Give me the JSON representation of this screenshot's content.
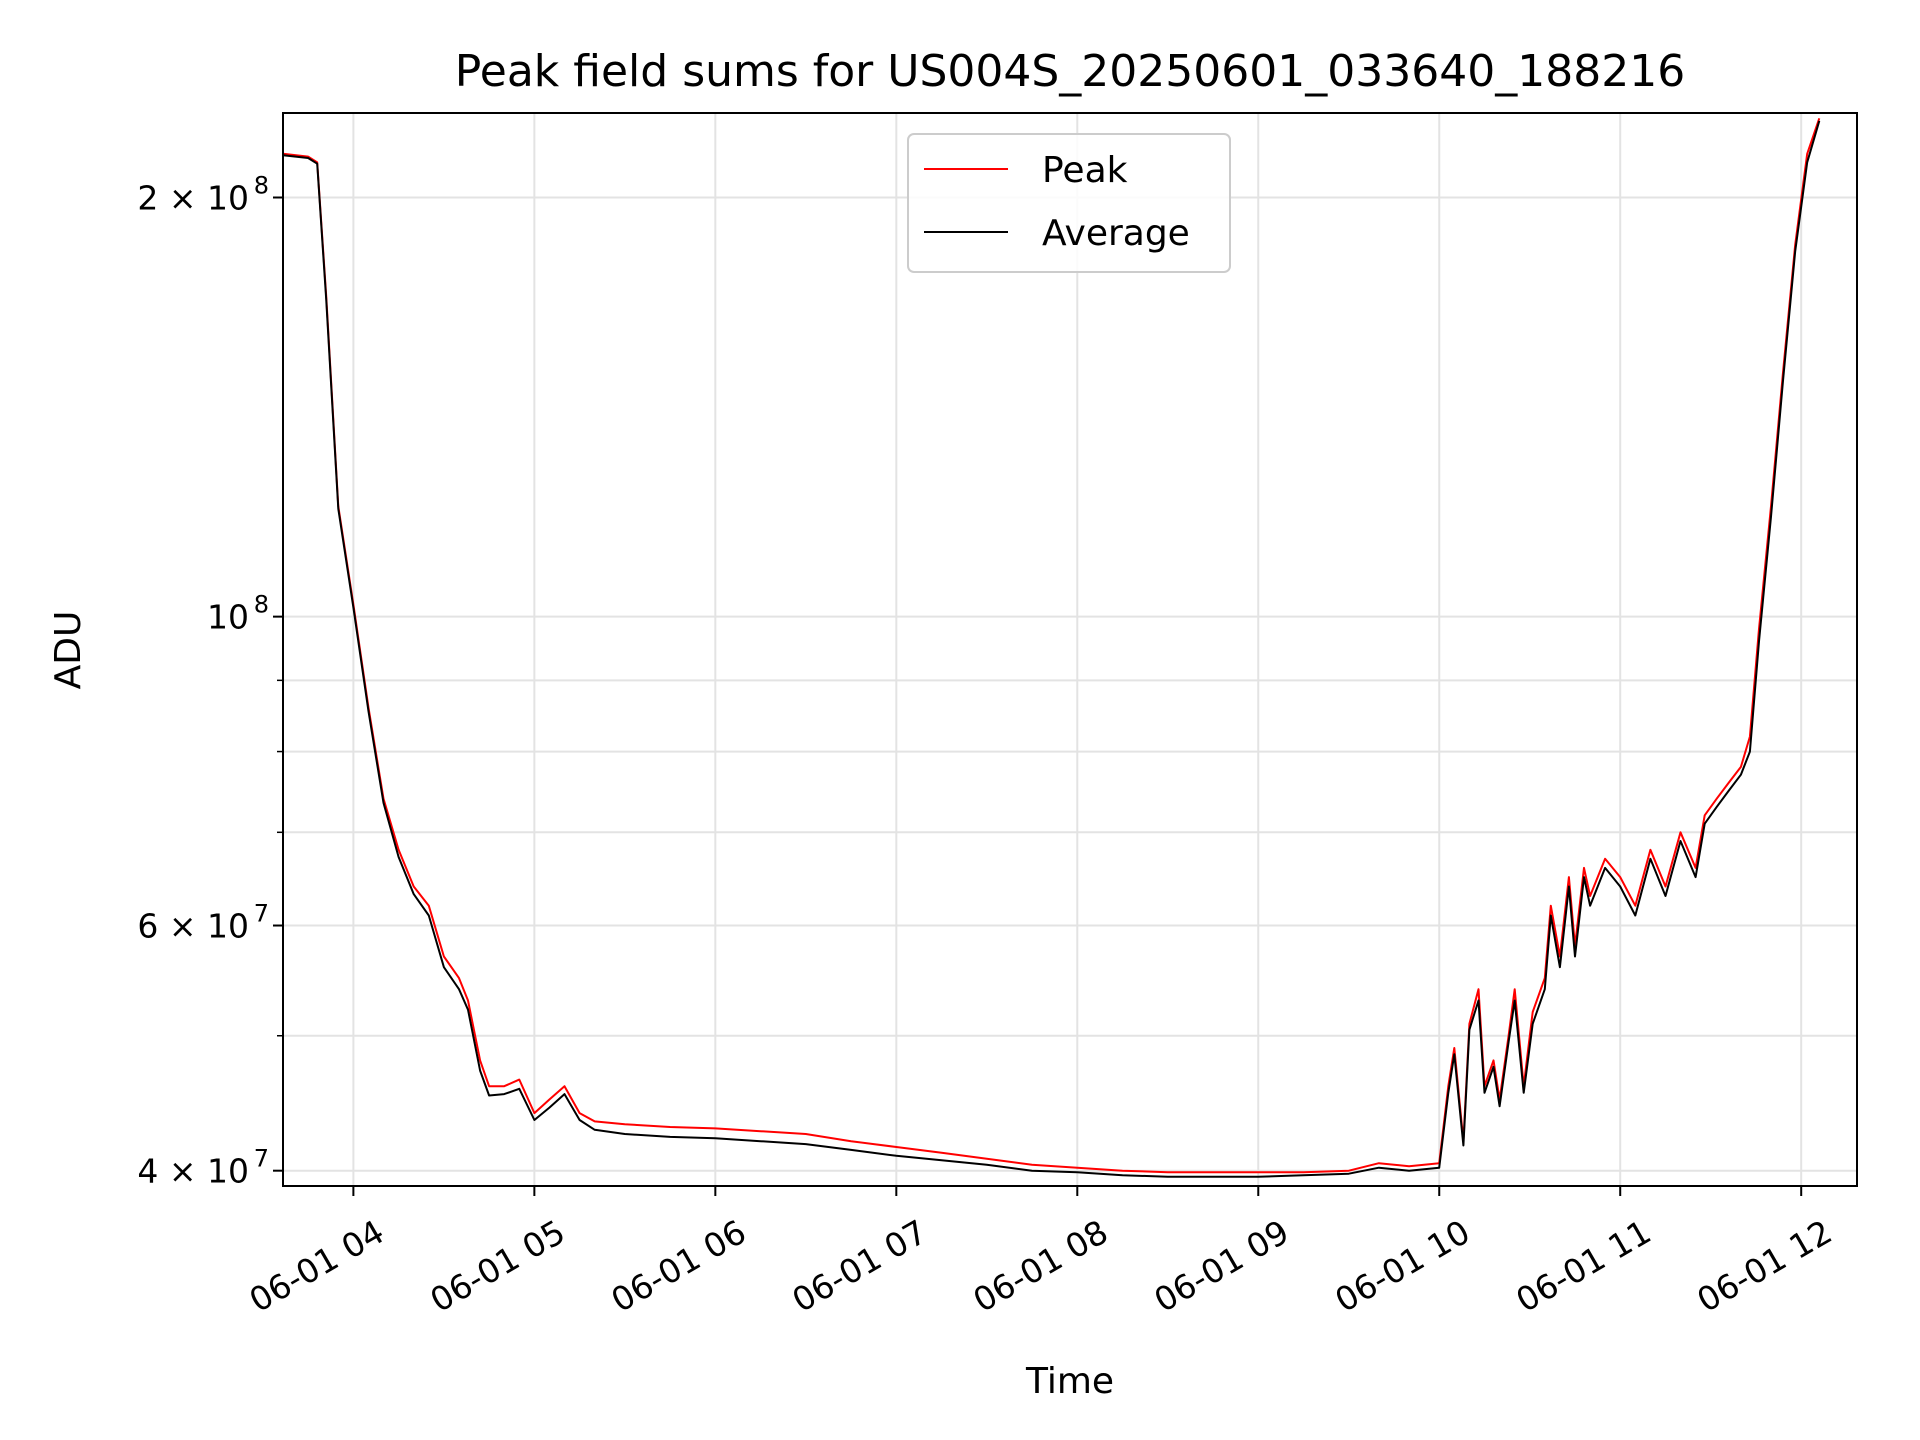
{
  "chart_data": {
    "type": "line",
    "title": "Peak field sums for US004S_20250601_033640_188216",
    "xlabel": "Time",
    "ylabel": "ADU",
    "y_scale": "log",
    "ylim": [
      39000000,
      230000000
    ],
    "xlim": [
      "2025-06-01T03:36:40",
      "2025-06-01T12:18:30"
    ],
    "grid": true,
    "legend_position": "top-center",
    "x_ticks": [
      {
        "t": "2025-06-01T04:00",
        "label": "06-01 04"
      },
      {
        "t": "2025-06-01T05:00",
        "label": "06-01 05"
      },
      {
        "t": "2025-06-01T06:00",
        "label": "06-01 06"
      },
      {
        "t": "2025-06-01T07:00",
        "label": "06-01 07"
      },
      {
        "t": "2025-06-01T08:00",
        "label": "06-01 08"
      },
      {
        "t": "2025-06-01T09:00",
        "label": "06-01 09"
      },
      {
        "t": "2025-06-01T10:00",
        "label": "06-01 10"
      },
      {
        "t": "2025-06-01T11:00",
        "label": "06-01 11"
      },
      {
        "t": "2025-06-01T12:00",
        "label": "06-01 12"
      }
    ],
    "y_ticks": [
      {
        "value": 40000000,
        "base": "4 × 10",
        "exp": "7"
      },
      {
        "value": 60000000,
        "base": "6 × 10",
        "exp": "7"
      },
      {
        "value": 100000000,
        "base": "10",
        "exp": "8"
      },
      {
        "value": 200000000,
        "base": "2 × 10",
        "exp": "8"
      }
    ],
    "y_minor_ticks": [
      50000000,
      70000000,
      80000000,
      90000000
    ],
    "series": [
      {
        "name": "Peak",
        "color": "#ff0000",
        "points": [
          [
            "2025-06-01T03:36:40",
            215000000
          ],
          [
            "2025-06-01T03:45:00",
            214000000
          ],
          [
            "2025-06-01T03:48:00",
            212000000
          ],
          [
            "2025-06-01T03:51:00",
            170000000
          ],
          [
            "2025-06-01T03:55:00",
            120000000
          ],
          [
            "2025-06-01T04:00:00",
            102000000
          ],
          [
            "2025-06-01T04:05:00",
            86000000
          ],
          [
            "2025-06-01T04:10:00",
            74000000
          ],
          [
            "2025-06-01T04:15:00",
            68000000
          ],
          [
            "2025-06-01T04:20:00",
            64000000
          ],
          [
            "2025-06-01T04:25:00",
            62000000
          ],
          [
            "2025-06-01T04:30:00",
            57000000
          ],
          [
            "2025-06-01T04:35:00",
            55000000
          ],
          [
            "2025-06-01T04:38:00",
            53000000
          ],
          [
            "2025-06-01T04:42:00",
            48000000
          ],
          [
            "2025-06-01T04:45:00",
            46000000
          ],
          [
            "2025-06-01T04:50:00",
            46000000
          ],
          [
            "2025-06-01T04:55:00",
            46500000
          ],
          [
            "2025-06-01T05:00:00",
            44000000
          ],
          [
            "2025-06-01T05:05:00",
            45000000
          ],
          [
            "2025-06-01T05:10:00",
            46000000
          ],
          [
            "2025-06-01T05:15:00",
            44000000
          ],
          [
            "2025-06-01T05:20:00",
            43400000
          ],
          [
            "2025-06-01T05:30:00",
            43200000
          ],
          [
            "2025-06-01T05:45:00",
            43000000
          ],
          [
            "2025-06-01T06:00:00",
            42900000
          ],
          [
            "2025-06-01T06:15:00",
            42700000
          ],
          [
            "2025-06-01T06:30:00",
            42500000
          ],
          [
            "2025-06-01T06:45:00",
            42000000
          ],
          [
            "2025-06-01T07:00:00",
            41600000
          ],
          [
            "2025-06-01T07:15:00",
            41200000
          ],
          [
            "2025-06-01T07:30:00",
            40800000
          ],
          [
            "2025-06-01T07:45:00",
            40400000
          ],
          [
            "2025-06-01T08:00:00",
            40200000
          ],
          [
            "2025-06-01T08:15:00",
            40000000
          ],
          [
            "2025-06-01T08:30:00",
            39900000
          ],
          [
            "2025-06-01T08:45:00",
            39900000
          ],
          [
            "2025-06-01T09:00:00",
            39900000
          ],
          [
            "2025-06-01T09:15:00",
            39900000
          ],
          [
            "2025-06-01T09:30:00",
            40000000
          ],
          [
            "2025-06-01T09:40:00",
            40500000
          ],
          [
            "2025-06-01T09:50:00",
            40300000
          ],
          [
            "2025-06-01T10:00:00",
            40500000
          ],
          [
            "2025-06-01T10:03:00",
            46000000
          ],
          [
            "2025-06-01T10:05:00",
            49000000
          ],
          [
            "2025-06-01T10:08:00",
            42000000
          ],
          [
            "2025-06-01T10:10:00",
            51000000
          ],
          [
            "2025-06-01T10:13:00",
            54000000
          ],
          [
            "2025-06-01T10:15:00",
            46000000
          ],
          [
            "2025-06-01T10:18:00",
            48000000
          ],
          [
            "2025-06-01T10:20:00",
            45000000
          ],
          [
            "2025-06-01T10:23:00",
            50000000
          ],
          [
            "2025-06-01T10:25:00",
            54000000
          ],
          [
            "2025-06-01T10:28:00",
            46000000
          ],
          [
            "2025-06-01T10:31:00",
            52000000
          ],
          [
            "2025-06-01T10:35:00",
            55000000
          ],
          [
            "2025-06-01T10:37:00",
            62000000
          ],
          [
            "2025-06-01T10:40:00",
            57000000
          ],
          [
            "2025-06-01T10:43:00",
            65000000
          ],
          [
            "2025-06-01T10:45:00",
            58000000
          ],
          [
            "2025-06-01T10:48:00",
            66000000
          ],
          [
            "2025-06-01T10:50:00",
            63000000
          ],
          [
            "2025-06-01T10:55:00",
            67000000
          ],
          [
            "2025-06-01T11:00:00",
            65000000
          ],
          [
            "2025-06-01T11:05:00",
            62000000
          ],
          [
            "2025-06-01T11:10:00",
            68000000
          ],
          [
            "2025-06-01T11:15:00",
            64000000
          ],
          [
            "2025-06-01T11:20:00",
            70000000
          ],
          [
            "2025-06-01T11:25:00",
            66000000
          ],
          [
            "2025-06-01T11:28:00",
            72000000
          ],
          [
            "2025-06-01T11:32:00",
            74000000
          ],
          [
            "2025-06-01T11:36:00",
            76000000
          ],
          [
            "2025-06-01T11:40:00",
            78000000
          ],
          [
            "2025-06-01T11:43:00",
            82000000
          ],
          [
            "2025-06-01T11:46:00",
            98000000
          ],
          [
            "2025-06-01T11:50:00",
            120000000
          ],
          [
            "2025-06-01T11:54:00",
            150000000
          ],
          [
            "2025-06-01T11:58:00",
            185000000
          ],
          [
            "2025-06-01T12:02:00",
            215000000
          ],
          [
            "2025-06-01T12:06:00",
            228000000
          ]
        ]
      },
      {
        "name": "Average",
        "color": "#000000",
        "points": [
          [
            "2025-06-01T03:36:40",
            214500000
          ],
          [
            "2025-06-01T03:45:00",
            213500000
          ],
          [
            "2025-06-01T03:48:00",
            211500000
          ],
          [
            "2025-06-01T03:51:00",
            169000000
          ],
          [
            "2025-06-01T03:55:00",
            119500000
          ],
          [
            "2025-06-01T04:00:00",
            101500000
          ],
          [
            "2025-06-01T04:05:00",
            85500000
          ],
          [
            "2025-06-01T04:10:00",
            73500000
          ],
          [
            "2025-06-01T04:15:00",
            67200000
          ],
          [
            "2025-06-01T04:20:00",
            63200000
          ],
          [
            "2025-06-01T04:25:00",
            61000000
          ],
          [
            "2025-06-01T04:30:00",
            56000000
          ],
          [
            "2025-06-01T04:35:00",
            54000000
          ],
          [
            "2025-06-01T04:38:00",
            52200000
          ],
          [
            "2025-06-01T04:42:00",
            47200000
          ],
          [
            "2025-06-01T04:45:00",
            45300000
          ],
          [
            "2025-06-01T04:50:00",
            45400000
          ],
          [
            "2025-06-01T04:55:00",
            45800000
          ],
          [
            "2025-06-01T05:00:00",
            43500000
          ],
          [
            "2025-06-01T05:05:00",
            44400000
          ],
          [
            "2025-06-01T05:10:00",
            45400000
          ],
          [
            "2025-06-01T05:15:00",
            43500000
          ],
          [
            "2025-06-01T05:20:00",
            42800000
          ],
          [
            "2025-06-01T05:30:00",
            42500000
          ],
          [
            "2025-06-01T05:45:00",
            42300000
          ],
          [
            "2025-06-01T06:00:00",
            42200000
          ],
          [
            "2025-06-01T06:15:00",
            42000000
          ],
          [
            "2025-06-01T06:30:00",
            41800000
          ],
          [
            "2025-06-01T06:45:00",
            41400000
          ],
          [
            "2025-06-01T07:00:00",
            41000000
          ],
          [
            "2025-06-01T07:15:00",
            40700000
          ],
          [
            "2025-06-01T07:30:00",
            40400000
          ],
          [
            "2025-06-01T07:45:00",
            40000000
          ],
          [
            "2025-06-01T08:00:00",
            39900000
          ],
          [
            "2025-06-01T08:15:00",
            39700000
          ],
          [
            "2025-06-01T08:30:00",
            39600000
          ],
          [
            "2025-06-01T08:45:00",
            39600000
          ],
          [
            "2025-06-01T09:00:00",
            39600000
          ],
          [
            "2025-06-01T09:15:00",
            39700000
          ],
          [
            "2025-06-01T09:30:00",
            39800000
          ],
          [
            "2025-06-01T09:40:00",
            40200000
          ],
          [
            "2025-06-01T09:50:00",
            40000000
          ],
          [
            "2025-06-01T10:00:00",
            40200000
          ],
          [
            "2025-06-01T10:03:00",
            45500000
          ],
          [
            "2025-06-01T10:05:00",
            48500000
          ],
          [
            "2025-06-01T10:08:00",
            41700000
          ],
          [
            "2025-06-01T10:10:00",
            50500000
          ],
          [
            "2025-06-01T10:13:00",
            53000000
          ],
          [
            "2025-06-01T10:15:00",
            45500000
          ],
          [
            "2025-06-01T10:18:00",
            47500000
          ],
          [
            "2025-06-01T10:20:00",
            44500000
          ],
          [
            "2025-06-01T10:23:00",
            49500000
          ],
          [
            "2025-06-01T10:25:00",
            53000000
          ],
          [
            "2025-06-01T10:28:00",
            45500000
          ],
          [
            "2025-06-01T10:31:00",
            51000000
          ],
          [
            "2025-06-01T10:35:00",
            54000000
          ],
          [
            "2025-06-01T10:37:00",
            61000000
          ],
          [
            "2025-06-01T10:40:00",
            56000000
          ],
          [
            "2025-06-01T10:43:00",
            64000000
          ],
          [
            "2025-06-01T10:45:00",
            57000000
          ],
          [
            "2025-06-01T10:48:00",
            65000000
          ],
          [
            "2025-06-01T10:50:00",
            62000000
          ],
          [
            "2025-06-01T10:55:00",
            66000000
          ],
          [
            "2025-06-01T11:00:00",
            64000000
          ],
          [
            "2025-06-01T11:05:00",
            61000000
          ],
          [
            "2025-06-01T11:10:00",
            67000000
          ],
          [
            "2025-06-01T11:15:00",
            63000000
          ],
          [
            "2025-06-01T11:20:00",
            69000000
          ],
          [
            "2025-06-01T11:25:00",
            65000000
          ],
          [
            "2025-06-01T11:28:00",
            71000000
          ],
          [
            "2025-06-01T11:32:00",
            73000000
          ],
          [
            "2025-06-01T11:36:00",
            75000000
          ],
          [
            "2025-06-01T11:40:00",
            77000000
          ],
          [
            "2025-06-01T11:43:00",
            80000000
          ],
          [
            "2025-06-01T11:46:00",
            96000000
          ],
          [
            "2025-06-01T11:50:00",
            118000000
          ],
          [
            "2025-06-01T11:54:00",
            148000000
          ],
          [
            "2025-06-01T11:58:00",
            183000000
          ],
          [
            "2025-06-01T12:02:00",
            212000000
          ],
          [
            "2025-06-01T12:06:00",
            227000000
          ]
        ]
      }
    ]
  }
}
